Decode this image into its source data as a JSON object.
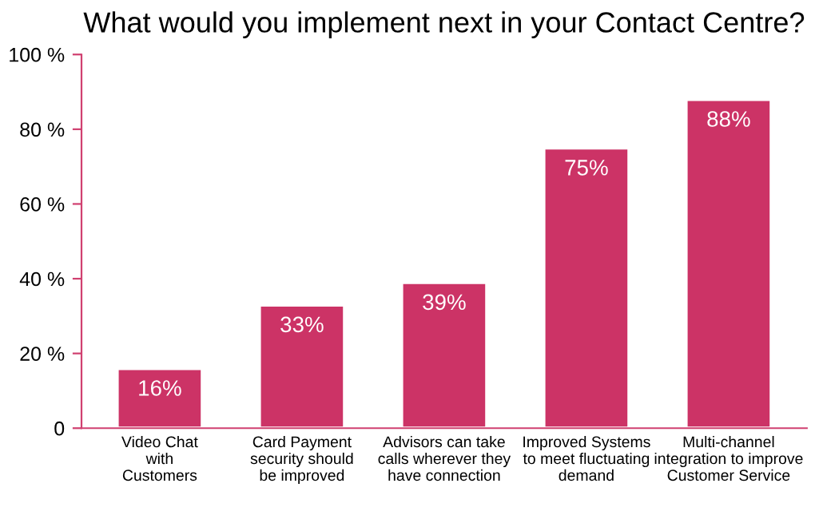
{
  "chart_data": {
    "type": "bar",
    "title": "What would you implement next in your Contact Centre?",
    "categories": [
      "Video Chat\nwith\nCustomers",
      "Card Payment\nsecurity should\nbe improved",
      "Advisors can take\ncalls wherever they\nhave connection",
      "Improved Systems\nto meet fluctuating\ndemand",
      "Multi-channel\nintegration to improve\nCustomer Service"
    ],
    "values": [
      16,
      33,
      39,
      75,
      88
    ],
    "value_labels": [
      "16%",
      "33%",
      "39%",
      "75%",
      "88%"
    ],
    "color": "#cc3366",
    "ylim": [
      0,
      100
    ],
    "yticks": [
      0,
      {
        "value": 20,
        "label": "20 %"
      },
      {
        "value": 40,
        "label": "40 %"
      },
      {
        "value": 60,
        "label": "60 %"
      },
      {
        "value": 80,
        "label": "80 %"
      },
      {
        "value": 100,
        "label": "100 %"
      }
    ],
    "grid": false,
    "legend": false
  }
}
